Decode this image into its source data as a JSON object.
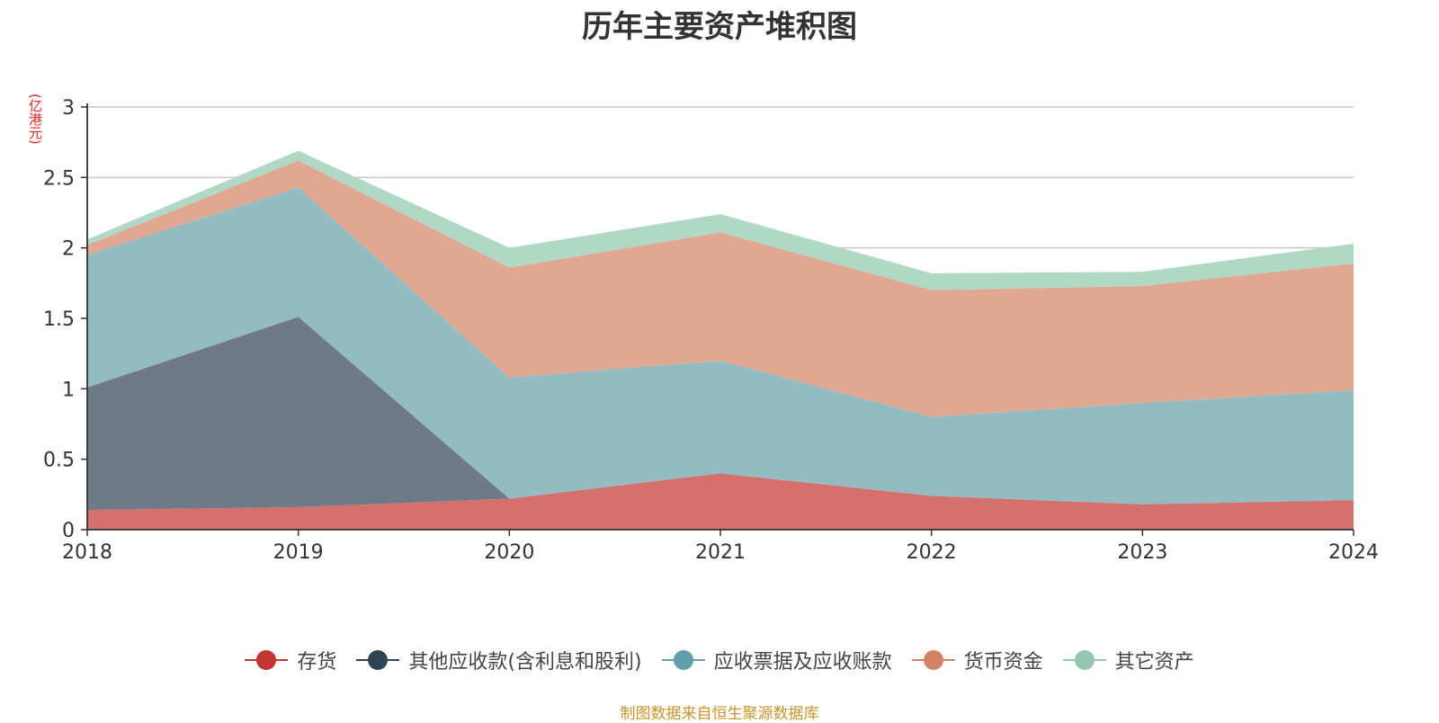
{
  "chart_data": {
    "type": "area",
    "stacked": true,
    "title": "历年主要资产堆积图",
    "ylabel": "(亿港元)",
    "xlabel": "",
    "source": "制图数据来自恒生聚源数据库",
    "x": [
      "2018",
      "2019",
      "2020",
      "2021",
      "2022",
      "2023",
      "2024"
    ],
    "ylim": [
      0,
      3
    ],
    "yticks": [
      "0",
      "0.5",
      "1",
      "1.5",
      "2",
      "2.5",
      "3"
    ],
    "grid": true,
    "legend_position": "bottom",
    "series": [
      {
        "name": "存货",
        "color": "#c23531",
        "fill": "#d4706d",
        "values": [
          0.14,
          0.16,
          0.22,
          0.4,
          0.24,
          0.18,
          0.21
        ]
      },
      {
        "name": "其他应收款(含利息和股利)",
        "color": "#2f4554",
        "fill": "#6e7b86",
        "values": [
          0.87,
          1.35,
          0.0,
          0.0,
          0.0,
          0.0,
          0.0
        ]
      },
      {
        "name": "应收票据及应收账款",
        "color": "#61a0a8",
        "fill": "#93bbc2",
        "values": [
          0.94,
          0.92,
          0.86,
          0.8,
          0.56,
          0.72,
          0.78
        ]
      },
      {
        "name": "货币资金",
        "color": "#d48265",
        "fill": "#e0a792",
        "values": [
          0.07,
          0.19,
          0.78,
          0.91,
          0.9,
          0.83,
          0.9
        ]
      },
      {
        "name": "其它资产",
        "color": "#91c7ae",
        "fill": "#b0d9c5",
        "values": [
          0.04,
          0.07,
          0.14,
          0.13,
          0.12,
          0.1,
          0.14
        ]
      }
    ]
  }
}
